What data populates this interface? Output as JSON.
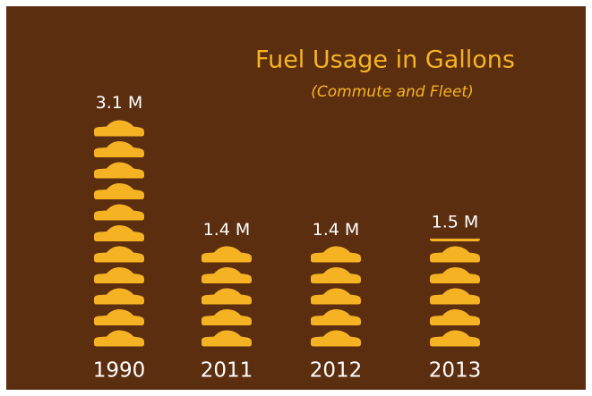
{
  "chart_data": {
    "type": "pictogram",
    "title": "Fuel Usage in Gallons",
    "subtitle": "(Commute and Fleet)",
    "categories": [
      "1990",
      "2011",
      "2012",
      "2013"
    ],
    "values": [
      3.1,
      1.4,
      1.4,
      1.5
    ],
    "value_labels": [
      "3.1 M",
      "1.4 M",
      "1.4 M",
      "1.5 M"
    ],
    "color": "#f5b324"
  }
}
